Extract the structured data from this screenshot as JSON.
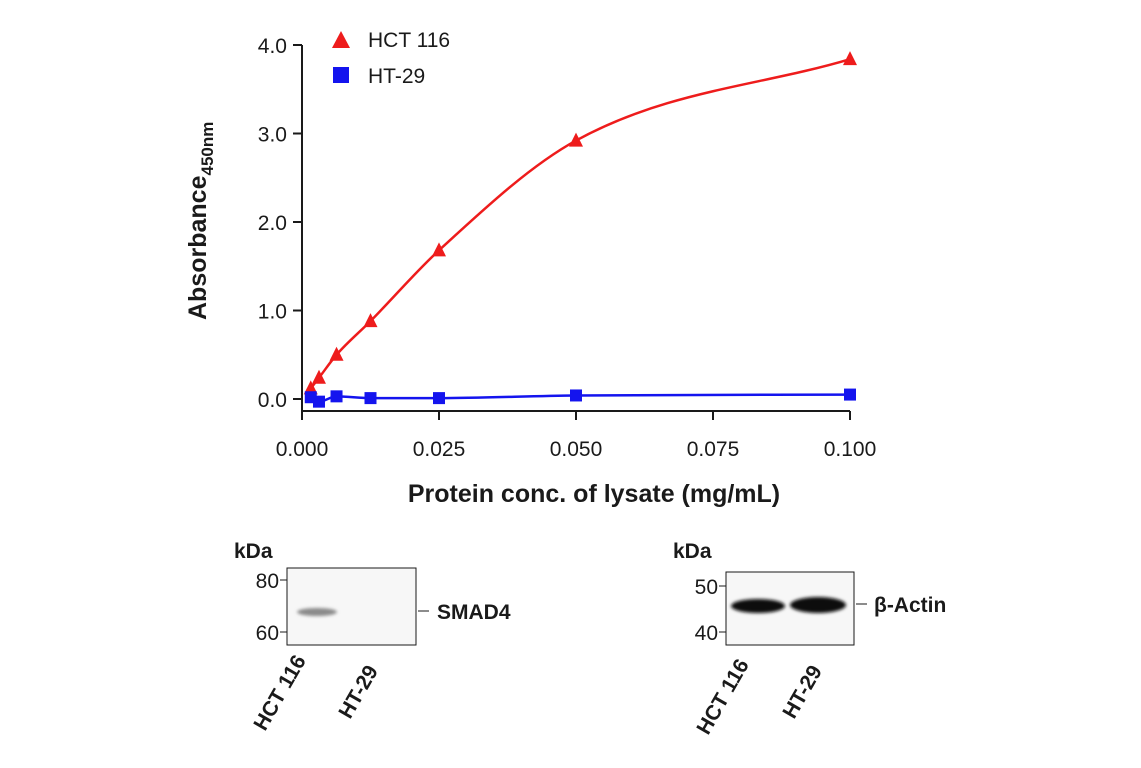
{
  "chart_data": {
    "type": "scatter",
    "xlabel": "Protein conc. of lysate (mg/mL)",
    "ylabel": "Absorbance",
    "ylabel_subscript": "450nm",
    "xlim": [
      0,
      0.1
    ],
    "ylim": [
      0,
      4.0
    ],
    "x_ticks": [
      "0.000",
      "0.025",
      "0.050",
      "0.075",
      "0.100"
    ],
    "y_ticks": [
      "0.0",
      "1.0",
      "2.0",
      "3.0",
      "4.0"
    ],
    "grid": false,
    "legend_position": "top-left",
    "series": [
      {
        "name": "HCT 116",
        "marker": "triangle",
        "color": "#ee1c1c",
        "x": [
          0.0016,
          0.0031,
          0.0063,
          0.0125,
          0.025,
          0.05,
          0.1
        ],
        "y": [
          0.12,
          0.24,
          0.5,
          0.88,
          1.68,
          2.92,
          3.84
        ]
      },
      {
        "name": "HT-29",
        "marker": "square",
        "color": "#1414ee",
        "x": [
          0.0016,
          0.0031,
          0.0063,
          0.0125,
          0.025,
          0.05,
          0.1
        ],
        "y": [
          0.02,
          -0.03,
          0.03,
          0.01,
          0.01,
          0.04,
          0.05
        ]
      }
    ]
  },
  "blots": [
    {
      "kda_label": "kDa",
      "markers": [
        "80",
        "60"
      ],
      "target": "SMAD4",
      "lanes": [
        "HCT 116",
        "HT-29"
      ]
    },
    {
      "kda_label": "kDa",
      "markers": [
        "50",
        "40"
      ],
      "target": "β-Actin",
      "lanes": [
        "HCT 116",
        "HT-29"
      ]
    }
  ]
}
